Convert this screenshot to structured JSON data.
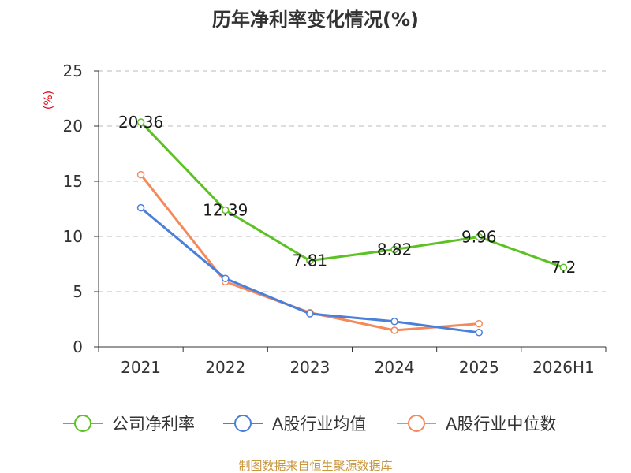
{
  "chart_data": {
    "type": "line",
    "title": "历年净利率变化情况(%)",
    "ylabel": "(%)",
    "xlabel": "",
    "ylim": [
      0,
      25
    ],
    "yticks": [
      0,
      5,
      10,
      15,
      20,
      25
    ],
    "grid": true,
    "categories": [
      "2021",
      "2022",
      "2023",
      "2024",
      "2025",
      "2026H1"
    ],
    "series": [
      {
        "name": "公司净利率",
        "values": [
          20.36,
          12.39,
          7.81,
          8.82,
          9.96,
          7.2
        ],
        "color": "#5cc123",
        "labels": [
          "20.36",
          "12.39",
          "7.81",
          "8.82",
          "9.96",
          "7.2"
        ]
      },
      {
        "name": "A股行业均值",
        "values": [
          12.6,
          6.2,
          3.0,
          2.3,
          1.3,
          null
        ],
        "color": "#4a7fdb"
      },
      {
        "name": "A股行业中位数",
        "values": [
          15.6,
          5.9,
          3.1,
          1.5,
          2.1,
          null
        ],
        "color": "#f5895a"
      }
    ],
    "legend_position": "bottom",
    "source": "制图数据来自恒生聚源数据库"
  }
}
